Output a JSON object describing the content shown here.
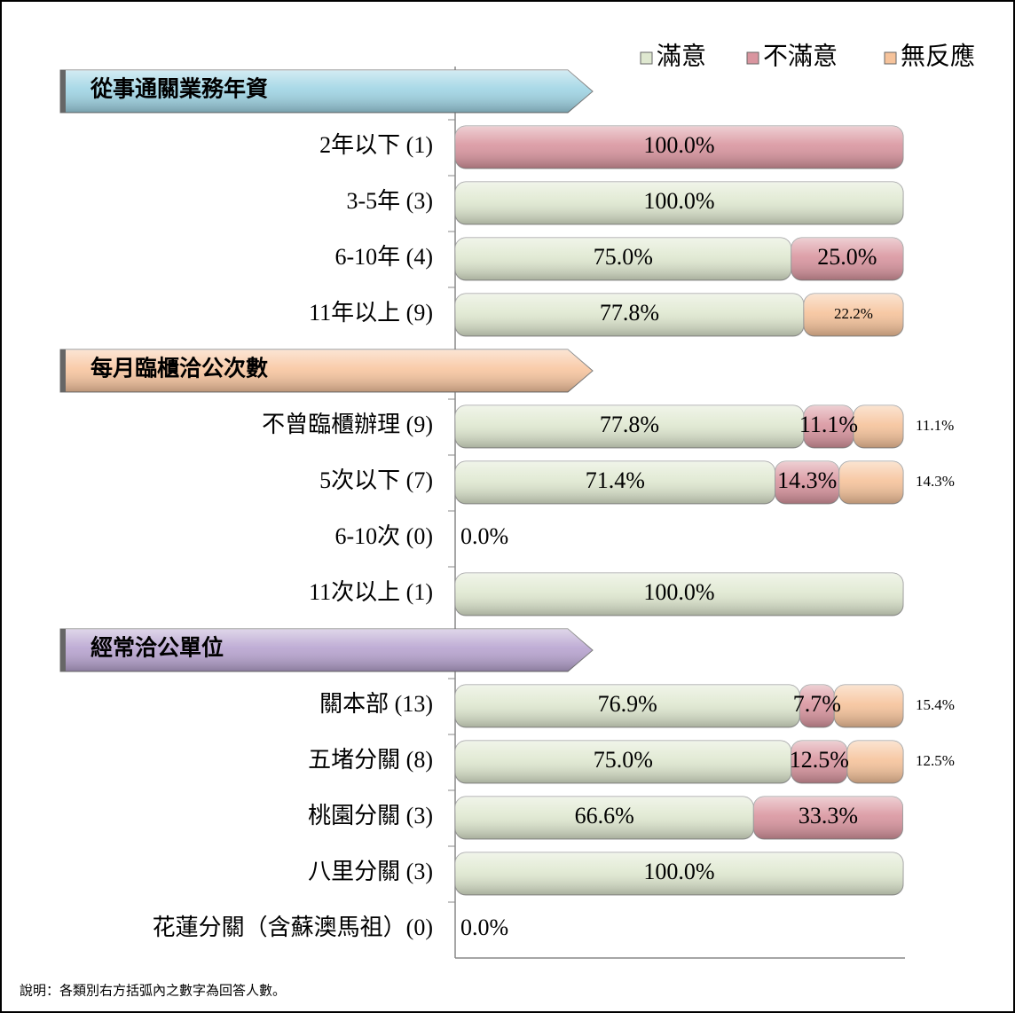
{
  "chart_data": {
    "type": "stacked-bar-horizontal",
    "xlim": [
      0,
      100
    ],
    "legend": "top-right",
    "series": [
      {
        "name": "滿意",
        "color": "#dfe8d0"
      },
      {
        "name": "不滿意",
        "color": "#d9959f"
      },
      {
        "name": "無反應",
        "color": "#f6c39b"
      }
    ],
    "groups": [
      {
        "title": "從事通關業務年資",
        "color": "#9fd4e4",
        "categories": [
          "2年以下 (1)",
          "3-5年 (3)",
          "6-10年 (4)",
          "11年以上 (9)"
        ],
        "values": [
          [
            0,
            100,
            75,
            77.8
          ],
          [
            100,
            0,
            25,
            0
          ],
          [
            0,
            0,
            0,
            22.2
          ]
        ],
        "value_labels": [
          [
            null,
            "100.0%",
            "75.0%",
            "77.8%"
          ],
          [
            "100.0%",
            null,
            "25.0%",
            null
          ],
          [
            null,
            null,
            null,
            "22.2%"
          ]
        ]
      },
      {
        "title": "每月臨櫃洽公次數",
        "color": "#f8c6a0",
        "categories": [
          "不曾臨櫃辦理 (9)",
          "5次以下 (7)",
          "6-10次 (0)",
          "11次以上 (1)"
        ],
        "values": [
          [
            77.8,
            71.4,
            0,
            100
          ],
          [
            11.1,
            14.3,
            0,
            0
          ],
          [
            11.1,
            14.3,
            0,
            0
          ]
        ],
        "value_labels": [
          [
            "77.8%",
            "71.4%",
            "0.0%",
            "100.0%"
          ],
          [
            "11.1%",
            "14.3%",
            null,
            null
          ],
          [
            "11.1%",
            "14.3%",
            null,
            null
          ]
        ]
      },
      {
        "title": "經常洽公單位",
        "color": "#b8a4d0",
        "categories": [
          "關本部 (13)",
          "五堵分關 (8)",
          "桃園分關 (3)",
          "八里分關 (3)",
          "花蓮分關（含蘇澳馬祖）(0)"
        ],
        "values": [
          [
            76.9,
            75,
            66.6,
            100,
            0
          ],
          [
            7.7,
            12.5,
            33.3,
            0,
            0
          ],
          [
            15.4,
            12.5,
            0,
            0,
            0
          ]
        ],
        "value_labels": [
          [
            "76.9%",
            "75.0%",
            "66.6%",
            "100.0%",
            "0.0%"
          ],
          [
            "7.7%",
            "12.5%",
            "33.3%",
            null,
            null
          ],
          [
            "15.4%",
            "12.5%",
            null,
            null,
            null
          ]
        ]
      }
    ],
    "note": "說明：各類別右方括弧內之數字為回答人數。"
  }
}
